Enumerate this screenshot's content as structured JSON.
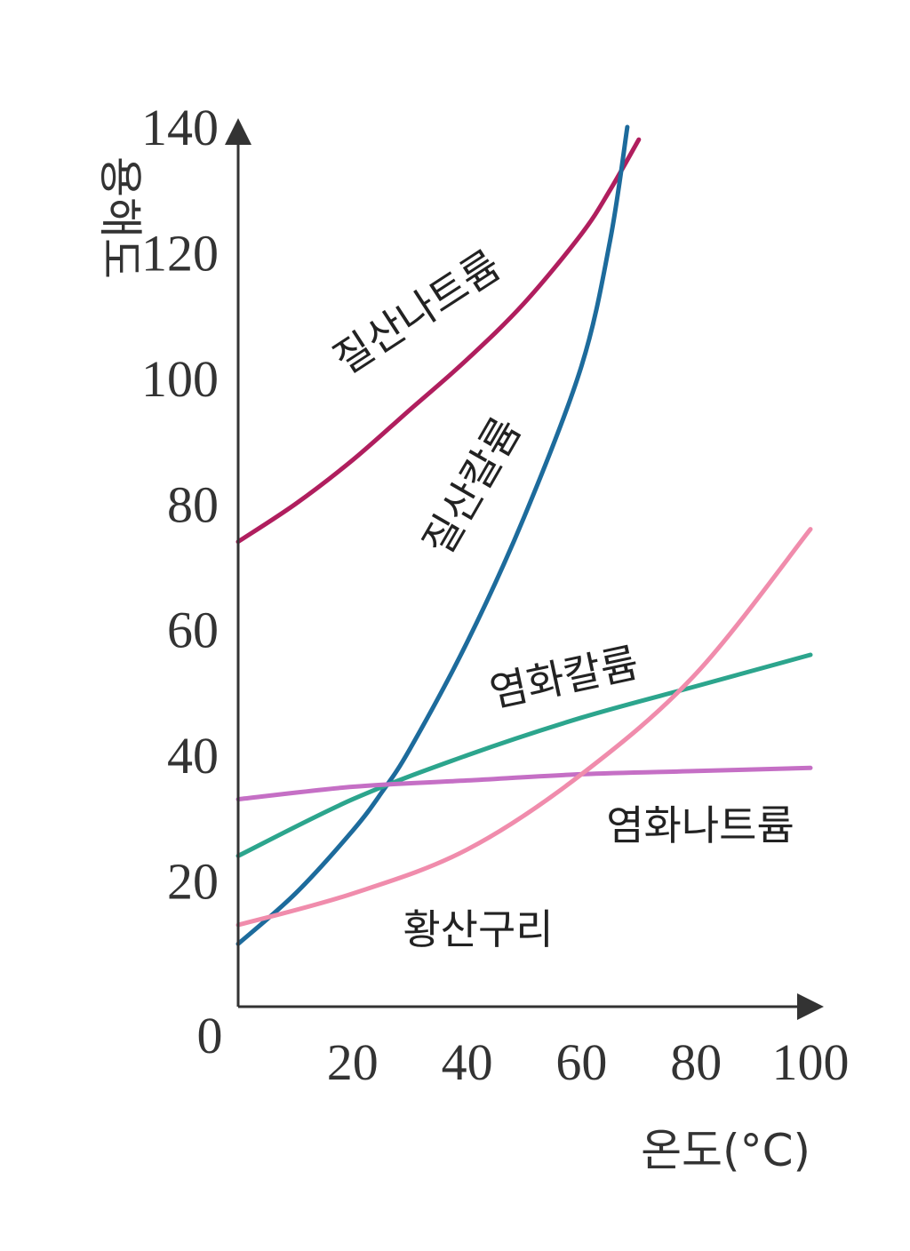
{
  "chart_data": {
    "type": "line",
    "xlabel": "온도(°C)",
    "ylabel": "용해도",
    "xlim": [
      0,
      100
    ],
    "ylim": [
      0,
      140
    ],
    "xticks": [
      "0",
      "20",
      "40",
      "60",
      "80",
      "100"
    ],
    "yticks": [
      "20",
      "40",
      "60",
      "80",
      "100",
      "120",
      "140"
    ],
    "grid": false,
    "series": [
      {
        "name": "질산나트륨",
        "color": "#b01e5e",
        "x": [
          0,
          10,
          20,
          30,
          40,
          50,
          60,
          65,
          70
        ],
        "y": [
          74,
          80,
          87,
          95,
          103,
          112,
          123,
          130,
          138
        ]
      },
      {
        "name": "질산칼륨",
        "color": "#1d6b9c",
        "x": [
          0,
          10,
          20,
          25,
          30,
          40,
          50,
          60,
          65,
          68
        ],
        "y": [
          10,
          18,
          28,
          34,
          41,
          58,
          78,
          102,
          122,
          140
        ]
      },
      {
        "name": "염화칼륨",
        "color": "#2ca58d",
        "x": [
          0,
          20,
          40,
          60,
          80,
          100
        ],
        "y": [
          24,
          33,
          40,
          46,
          51,
          56
        ]
      },
      {
        "name": "염화나트륨",
        "color": "#c56fc5",
        "x": [
          0,
          20,
          40,
          60,
          80,
          100
        ],
        "y": [
          33,
          35,
          36,
          37,
          37.5,
          38
        ]
      },
      {
        "name": "황산구리",
        "color": "#f08cac",
        "x": [
          0,
          20,
          40,
          60,
          80,
          100
        ],
        "y": [
          13,
          18,
          25,
          37,
          53,
          76
        ]
      }
    ]
  }
}
